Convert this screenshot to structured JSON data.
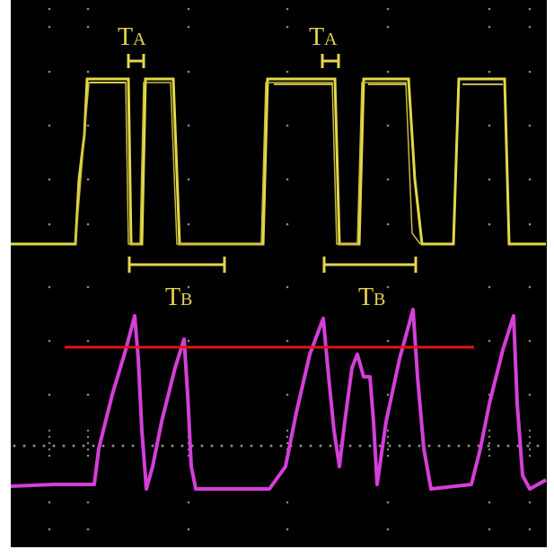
{
  "annotations": [
    {
      "letter": "T",
      "subscript": "A"
    },
    {
      "letter": "T",
      "subscript": "A"
    },
    {
      "letter": "T",
      "subscript": "B"
    },
    {
      "letter": "T",
      "subscript": "B"
    }
  ]
}
